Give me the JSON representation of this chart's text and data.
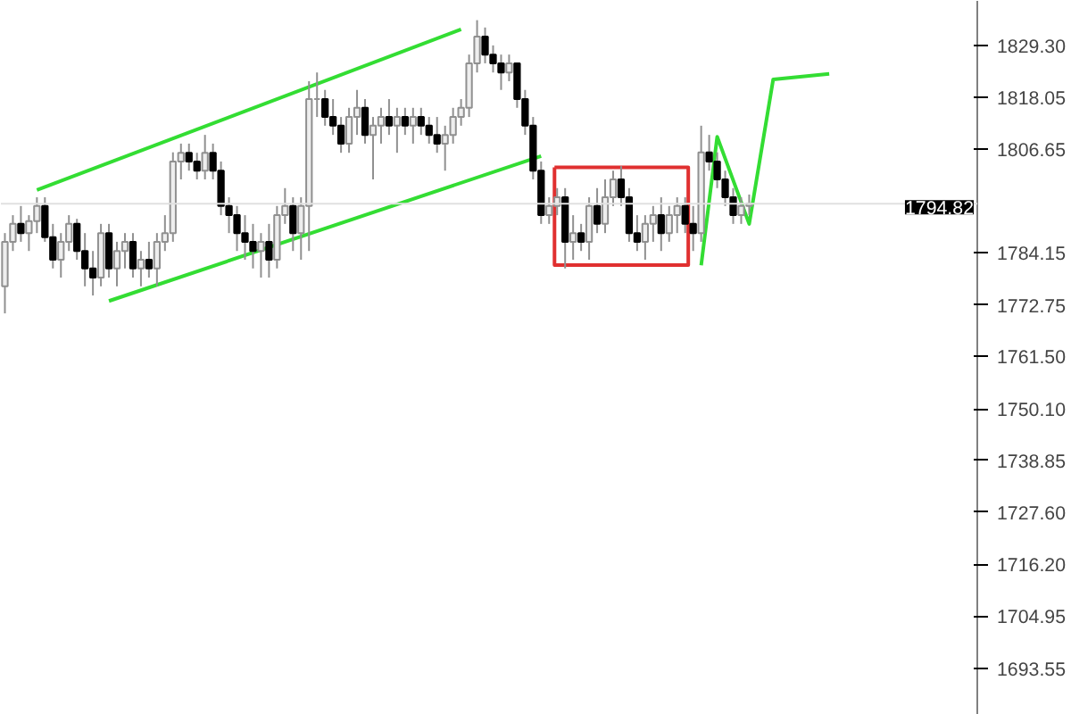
{
  "chart_data": {
    "type": "candlestick",
    "ohlc": [
      [
        1776.8,
        1788.4,
        1770.9,
        1786.5
      ],
      [
        1786.5,
        1792.3,
        1784.5,
        1790.4
      ],
      [
        1790.4,
        1794.3,
        1786.5,
        1788.4
      ],
      [
        1788.4,
        1792.3,
        1784.5,
        1791.0
      ],
      [
        1791.0,
        1796.2,
        1788.4,
        1794.3
      ],
      [
        1794.3,
        1796.2,
        1786.5,
        1787.5
      ],
      [
        1787.5,
        1790.4,
        1780.7,
        1782.6
      ],
      [
        1782.6,
        1788.4,
        1778.7,
        1786.5
      ],
      [
        1786.5,
        1792.3,
        1784.5,
        1790.4
      ],
      [
        1790.4,
        1791.5,
        1782.6,
        1784.5
      ],
      [
        1784.5,
        1788.4,
        1776.8,
        1780.7
      ],
      [
        1780.7,
        1784.5,
        1774.8,
        1778.7
      ],
      [
        1778.7,
        1790.4,
        1776.8,
        1788.4
      ],
      [
        1788.4,
        1790.4,
        1778.7,
        1780.7
      ],
      [
        1780.7,
        1786.5,
        1776.8,
        1784.5
      ],
      [
        1784.5,
        1788.4,
        1780.7,
        1786.5
      ],
      [
        1786.5,
        1788.4,
        1778.7,
        1780.7
      ],
      [
        1780.7,
        1784.5,
        1776.8,
        1782.6
      ],
      [
        1782.6,
        1786.5,
        1778.7,
        1780.7
      ],
      [
        1780.7,
        1788.4,
        1776.8,
        1786.5
      ],
      [
        1786.5,
        1792.3,
        1784.5,
        1788.4
      ],
      [
        1788.4,
        1806.0,
        1786.5,
        1804.0
      ],
      [
        1804.0,
        1807.9,
        1800.1,
        1805.9
      ],
      [
        1805.9,
        1807.9,
        1802.0,
        1804.0
      ],
      [
        1804.0,
        1805.9,
        1800.1,
        1802.0
      ],
      [
        1802.0,
        1809.8,
        1800.1,
        1805.9
      ],
      [
        1805.9,
        1807.9,
        1800.1,
        1802.0
      ],
      [
        1802.0,
        1804.0,
        1792.3,
        1794.3
      ],
      [
        1794.3,
        1796.2,
        1788.4,
        1792.3
      ],
      [
        1792.3,
        1794.3,
        1784.5,
        1788.4
      ],
      [
        1788.4,
        1792.3,
        1782.6,
        1786.5
      ],
      [
        1786.5,
        1790.4,
        1780.7,
        1784.5
      ],
      [
        1784.5,
        1788.4,
        1778.7,
        1786.5
      ],
      [
        1786.5,
        1790.4,
        1778.7,
        1782.6
      ],
      [
        1782.6,
        1794.3,
        1780.7,
        1792.3
      ],
      [
        1792.3,
        1798.2,
        1790.4,
        1794.3
      ],
      [
        1794.3,
        1796.2,
        1784.5,
        1788.4
      ],
      [
        1788.4,
        1796.2,
        1782.6,
        1794.3
      ],
      [
        1794.3,
        1821.5,
        1784.5,
        1817.6
      ],
      [
        1817.6,
        1823.4,
        1813.7,
        1817.6
      ],
      [
        1817.6,
        1819.6,
        1811.8,
        1813.7
      ],
      [
        1813.7,
        1817.6,
        1809.8,
        1811.8
      ],
      [
        1811.8,
        1813.7,
        1805.9,
        1807.9
      ],
      [
        1807.9,
        1815.7,
        1805.9,
        1813.7
      ],
      [
        1813.7,
        1819.6,
        1809.8,
        1815.7
      ],
      [
        1815.7,
        1817.6,
        1807.9,
        1809.8
      ],
      [
        1809.8,
        1813.7,
        1800.1,
        1811.8
      ],
      [
        1811.8,
        1815.7,
        1807.9,
        1813.7
      ],
      [
        1813.7,
        1817.6,
        1809.8,
        1811.8
      ],
      [
        1811.8,
        1815.7,
        1805.9,
        1813.7
      ],
      [
        1813.7,
        1815.7,
        1809.8,
        1811.8
      ],
      [
        1811.8,
        1815.7,
        1807.9,
        1813.7
      ],
      [
        1813.7,
        1815.7,
        1809.8,
        1811.8
      ],
      [
        1811.8,
        1813.7,
        1807.9,
        1809.8
      ],
      [
        1809.8,
        1813.7,
        1805.9,
        1807.9
      ],
      [
        1807.9,
        1811.8,
        1802.0,
        1809.8
      ],
      [
        1809.8,
        1815.7,
        1807.9,
        1813.7
      ],
      [
        1813.7,
        1817.6,
        1811.8,
        1815.7
      ],
      [
        1815.7,
        1827.3,
        1813.7,
        1825.4
      ],
      [
        1825.4,
        1834.8,
        1823.4,
        1831.2
      ],
      [
        1831.2,
        1833.2,
        1825.4,
        1827.3
      ],
      [
        1827.3,
        1829.3,
        1823.4,
        1825.4
      ],
      [
        1825.4,
        1827.3,
        1819.6,
        1823.4
      ],
      [
        1823.4,
        1827.3,
        1821.5,
        1825.4
      ],
      [
        1825.4,
        1825.4,
        1815.7,
        1817.6
      ],
      [
        1817.6,
        1819.6,
        1809.8,
        1811.8
      ],
      [
        1811.8,
        1813.7,
        1800.1,
        1802.0
      ],
      [
        1802.0,
        1804.0,
        1790.4,
        1792.3
      ],
      [
        1792.3,
        1796.2,
        1790.4,
        1794.3
      ],
      [
        1794.3,
        1798.2,
        1792.3,
        1796.2
      ],
      [
        1796.2,
        1798.2,
        1780.7,
        1786.5
      ],
      [
        1786.5,
        1792.3,
        1782.6,
        1788.4
      ],
      [
        1788.4,
        1790.4,
        1784.5,
        1786.5
      ],
      [
        1786.5,
        1796.2,
        1782.6,
        1794.3
      ],
      [
        1794.3,
        1798.2,
        1788.4,
        1790.4
      ],
      [
        1790.4,
        1800.1,
        1788.4,
        1796.2
      ],
      [
        1796.2,
        1802.0,
        1794.3,
        1800.1
      ],
      [
        1800.1,
        1803.0,
        1794.3,
        1796.2
      ],
      [
        1796.2,
        1798.2,
        1786.5,
        1788.4
      ],
      [
        1788.4,
        1792.3,
        1784.5,
        1786.5
      ],
      [
        1786.5,
        1792.3,
        1782.6,
        1790.4
      ],
      [
        1790.4,
        1794.3,
        1786.5,
        1792.3
      ],
      [
        1792.3,
        1796.2,
        1784.5,
        1788.4
      ],
      [
        1788.4,
        1794.3,
        1786.5,
        1792.3
      ],
      [
        1792.3,
        1796.2,
        1788.4,
        1794.3
      ],
      [
        1794.3,
        1796.2,
        1788.4,
        1790.4
      ],
      [
        1790.4,
        1794.3,
        1784.5,
        1788.4
      ],
      [
        1788.4,
        1811.8,
        1786.5,
        1806.0
      ],
      [
        1806.0,
        1809.8,
        1802.0,
        1804.0
      ],
      [
        1804.0,
        1806.0,
        1798.2,
        1800.1
      ],
      [
        1800.1,
        1802.0,
        1794.3,
        1796.2
      ],
      [
        1796.2,
        1798.2,
        1790.4,
        1792.3
      ],
      [
        1792.3,
        1796.2,
        1790.4,
        1794.3
      ],
      [
        1794.3,
        1796.8,
        1792.3,
        1794.8
      ],
      null,
      null,
      null,
      null,
      null,
      null,
      null,
      null,
      null,
      null,
      null,
      null,
      null,
      null,
      null,
      null,
      null,
      null,
      null,
      null,
      null,
      null,
      null,
      null,
      null,
      null,
      null,
      null
    ],
    "categories": [
      null,
      null,
      null,
      null,
      null,
      null,
      null,
      null,
      null,
      null,
      null,
      null,
      null,
      null,
      null,
      null,
      null,
      null,
      null,
      null,
      null,
      null,
      null,
      null,
      null,
      null,
      null,
      null,
      null,
      null,
      null,
      null,
      null,
      null,
      null,
      null,
      null,
      null,
      null,
      null,
      null,
      null,
      null,
      null,
      null,
      null,
      null,
      null,
      null,
      null,
      null,
      null,
      null,
      null,
      null,
      null,
      null,
      null,
      null,
      null,
      null,
      null,
      null,
      null,
      null,
      null,
      null,
      null,
      null,
      null,
      null,
      null,
      null,
      null,
      null,
      null,
      null,
      null,
      null,
      null,
      null,
      null,
      null,
      null,
      null,
      null,
      null,
      null,
      null,
      null,
      null,
      null,
      null,
      null,
      null,
      null,
      null,
      null,
      null,
      null,
      null,
      null,
      null,
      null,
      null,
      null,
      null,
      null,
      null,
      null,
      null,
      null,
      null,
      null,
      null,
      null,
      null,
      null,
      null,
      null,
      null,
      null
    ],
    "series": [
      {
        "type": "line",
        "color": "#33dd33",
        "values": [
          null,
          null,
          null,
          null,
          1797.8,
          null,
          null,
          null,
          null,
          null,
          null,
          null,
          null,
          null,
          null,
          null,
          null,
          null,
          null,
          null,
          null,
          null,
          null,
          null,
          null,
          null,
          null,
          null,
          null,
          null,
          null,
          null,
          null,
          null,
          null,
          null,
          null,
          null,
          null,
          null,
          null,
          null,
          null,
          null,
          null,
          null,
          null,
          null,
          null,
          null,
          null,
          null,
          null,
          null,
          null,
          null,
          null,
          1832.8,
          null,
          null,
          null,
          null,
          null,
          null,
          null,
          null,
          null,
          null,
          null,
          null,
          null,
          null,
          null,
          null,
          null,
          null,
          null,
          null,
          null,
          null,
          null,
          null,
          null,
          null,
          null,
          null,
          null,
          null,
          null,
          null,
          null,
          null,
          null,
          null,
          null,
          null,
          null,
          null,
          null,
          null,
          null,
          null,
          null,
          null,
          null,
          null,
          null,
          null,
          null,
          null,
          null,
          null,
          null,
          null,
          null,
          null,
          null,
          null,
          null,
          null,
          null,
          null
        ]
      },
      {
        "type": "line",
        "color": "#33dd33",
        "values": [
          null,
          null,
          null,
          null,
          null,
          null,
          null,
          null,
          null,
          null,
          null,
          null,
          null,
          1773.6,
          null,
          null,
          null,
          null,
          null,
          null,
          null,
          null,
          null,
          null,
          null,
          null,
          null,
          null,
          null,
          null,
          null,
          null,
          null,
          null,
          null,
          null,
          null,
          null,
          null,
          null,
          null,
          null,
          null,
          null,
          null,
          null,
          null,
          null,
          null,
          null,
          null,
          null,
          null,
          null,
          null,
          null,
          null,
          null,
          null,
          null,
          null,
          null,
          null,
          null,
          null,
          null,
          null,
          1805.2,
          null,
          null,
          null,
          null,
          null,
          null,
          null,
          null,
          null,
          null,
          null,
          null,
          null,
          null,
          null,
          null,
          null,
          null,
          null,
          null,
          null,
          null,
          null,
          null,
          null,
          null,
          null,
          null,
          null,
          null,
          null,
          null,
          null,
          null,
          null,
          null,
          null,
          null,
          null,
          null,
          null,
          null,
          null,
          null,
          null,
          null,
          null,
          null,
          null,
          null,
          null,
          null,
          null,
          null
        ]
      },
      {
        "type": "line",
        "color": "#33dd33",
        "values": [
          null,
          null,
          null,
          null,
          null,
          null,
          null,
          null,
          null,
          null,
          null,
          null,
          null,
          null,
          null,
          null,
          null,
          null,
          null,
          null,
          null,
          null,
          null,
          null,
          null,
          null,
          null,
          null,
          null,
          null,
          null,
          null,
          null,
          null,
          null,
          null,
          null,
          null,
          null,
          null,
          null,
          null,
          null,
          null,
          null,
          null,
          null,
          null,
          null,
          null,
          null,
          null,
          null,
          null,
          null,
          null,
          null,
          null,
          null,
          null,
          null,
          null,
          null,
          null,
          null,
          null,
          null,
          null,
          null,
          null,
          null,
          null,
          null,
          null,
          null,
          null,
          null,
          null,
          null,
          null,
          null,
          null,
          null,
          null,
          null,
          null,
          null,
          1781.4,
          null,
          1809.4,
          null,
          null,
          null,
          1790.4,
          null,
          null,
          1821.9,
          null,
          null,
          null,
          null,
          null,
          null,
          1823.1,
          null,
          null,
          null,
          null,
          null,
          null,
          null,
          null,
          null,
          null,
          null,
          null,
          null,
          null,
          null,
          null,
          null,
          null
        ]
      }
    ],
    "ylim": [
      1683.4,
      1839.0
    ],
    "yticks": [
      {
        "value": 1829.3,
        "label": "1829.30"
      },
      1818.05,
      1806.65,
      1784.15,
      1772.75,
      {
        "value": 1761.5,
        "label": "1761.50"
      },
      {
        "value": 1750.1,
        "label": "1750.10"
      },
      1738.85,
      {
        "value": 1727.6,
        "label": "1727.60"
      },
      {
        "value": 1716.2,
        "label": "1716.20"
      },
      1704.95,
      1693.55
    ],
    "ref_lines": [
      {
        "axis": "y",
        "value": 1794.82,
        "label": "1794.82",
        "color": "#e0e0e0"
      }
    ],
    "tick_labels": "y",
    "grid": false
  }
}
